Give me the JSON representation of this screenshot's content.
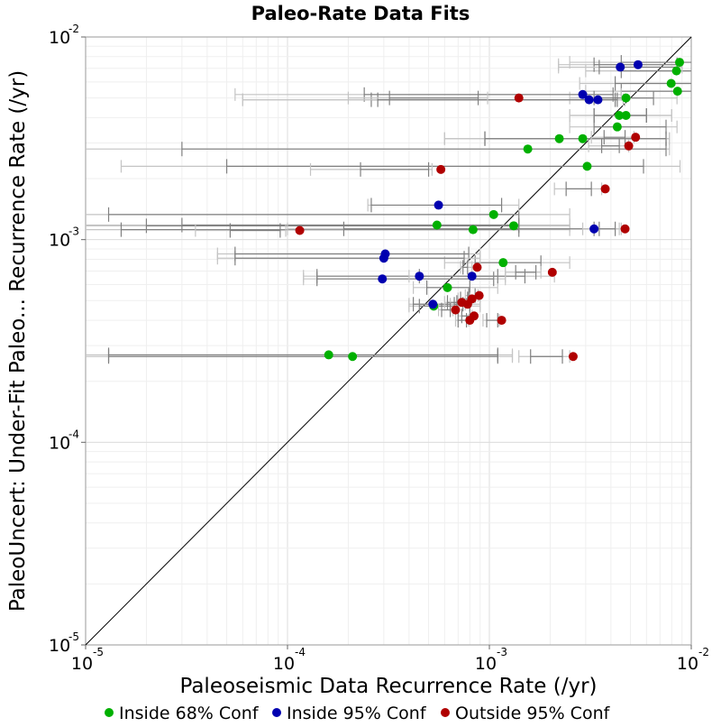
{
  "chart_data": {
    "type": "scatter",
    "title": "Paleo-Rate Data Fits",
    "xlabel": "Paleoseismic Data Recurrence Rate (/yr)",
    "ylabel": "PaleoUncert: Under-Fit Paleo... Recurrence Rate (/yr)",
    "xscale": "log",
    "yscale": "log",
    "xlim": [
      1e-05,
      0.01
    ],
    "ylim": [
      1e-05,
      0.01
    ],
    "x_ticks": [
      {
        "base": "10",
        "exp": "-5",
        "value": 1e-05
      },
      {
        "base": "10",
        "exp": "-4",
        "value": 0.0001
      },
      {
        "base": "10",
        "exp": "-3",
        "value": 0.001
      },
      {
        "base": "10",
        "exp": "-2",
        "value": 0.01
      }
    ],
    "y_ticks": [
      {
        "base": "10",
        "exp": "-5",
        "value": 1e-05
      },
      {
        "base": "10",
        "exp": "-4",
        "value": 0.0001
      },
      {
        "base": "10",
        "exp": "-3",
        "value": 0.001
      },
      {
        "base": "10",
        "exp": "-2",
        "value": 0.01
      }
    ],
    "grid": true,
    "reference_line": "y = x",
    "legend_position": "bottom",
    "legend": [
      {
        "label": "Inside 68% Conf",
        "color": "#00b000"
      },
      {
        "label": "Inside 95% Conf",
        "color": "#0000b0"
      },
      {
        "label": "Outside 95% Conf",
        "color": "#b00000"
      }
    ],
    "series": [
      {
        "name": "Inside 68% Conf",
        "color": "#00b000",
        "points": [
          {
            "x": 0.00875,
            "y": 0.0075,
            "ci68": [
              0.0045,
              0.01
            ],
            "ci95": [
              0.0025,
              0.012
            ]
          },
          {
            "x": 0.00845,
            "y": 0.0068,
            "ci68": [
              0.0045,
              0.01
            ],
            "ci95": [
              0.003,
              0.012
            ]
          },
          {
            "x": 0.00795,
            "y": 0.0059,
            "ci68": [
              0.0042,
              0.01
            ],
            "ci95": [
              0.0028,
              0.012
            ]
          },
          {
            "x": 0.00855,
            "y": 0.0054,
            "ci68": [
              0.0045,
              0.01
            ],
            "ci95": [
              0.003,
              0.012
            ]
          },
          {
            "x": 0.00475,
            "y": 0.005,
            "ci68": [
              0.0033,
              0.0065
            ],
            "ci95": [
              0.0025,
              0.0085
            ]
          },
          {
            "x": 0.00475,
            "y": 0.0041,
            "ci68": [
              0.0033,
              0.006
            ],
            "ci95": [
              0.0025,
              0.008
            ]
          },
          {
            "x": 0.0044,
            "y": 0.0041,
            "ci68": [
              0.0033,
              0.006
            ],
            "ci95": [
              0.0025,
              0.008
            ]
          },
          {
            "x": 0.0043,
            "y": 0.0036,
            "ci68": [
              0.0033,
              0.0075
            ],
            "ci95": [
              0.0025,
              0.0085
            ]
          },
          {
            "x": 0.00222,
            "y": 0.00315,
            "ci68": [
              0.00095,
              0.0075
            ],
            "ci95": [
              0.0006,
              0.0078
            ]
          },
          {
            "x": 0.0029,
            "y": 0.00315,
            "ci68": [
              0.00095,
              0.0075
            ],
            "ci95": [
              0.0006,
              0.0078
            ]
          },
          {
            "x": 0.00155,
            "y": 0.0028,
            "ci68": [
              3e-05,
              0.0075
            ],
            "ci95": [
              1e-05,
              0.0078
            ]
          },
          {
            "x": 0.00305,
            "y": 0.0023,
            "ci68": [
              5e-05,
              0.0058
            ],
            "ci95": [
              1.5e-05,
              0.0088
            ]
          },
          {
            "x": 0.00055,
            "y": 0.00118,
            "ci68": [
              3e-05,
              0.0014
            ],
            "ci95": [
              1e-05,
              0.0025
            ]
          },
          {
            "x": 0.00105,
            "y": 0.00133,
            "ci68": [
              1.3e-05,
              0.0014
            ],
            "ci95": [
              1e-05,
              0.0025
            ]
          },
          {
            "x": 0.00132,
            "y": 0.00117,
            "ci68": [
              2e-05,
              0.0014
            ],
            "ci95": [
              1e-05,
              0.0025
            ]
          },
          {
            "x": 0.00083,
            "y": 0.00112,
            "ci68": [
              1.5e-05,
              0.0014
            ],
            "ci95": [
              1e-05,
              0.0025
            ]
          },
          {
            "x": 0.00117,
            "y": 0.00077,
            "ci68": [
              0.00085,
              0.0018
            ],
            "ci95": [
              0.0006,
              0.0025
            ]
          },
          {
            "x": 0.00062,
            "y": 0.00058,
            "ci68": [
              0.00049,
              0.0008
            ],
            "ci95": [
              0.00042,
              0.0011
            ]
          },
          {
            "x": 0.00053,
            "y": 0.00047,
            "ci68": [
              0.00045,
              0.0007
            ],
            "ci95": [
              0.0004,
              0.0009
            ]
          },
          {
            "x": 0.00016,
            "y": 0.00027,
            "ci68": [
              1.3e-05,
              0.0011
            ],
            "ci95": [
              1e-05,
              0.0013
            ]
          },
          {
            "x": 0.00021,
            "y": 0.000265,
            "ci68": [
              1.3e-05,
              0.0011
            ],
            "ci95": [
              1e-05,
              0.0013
            ]
          }
        ]
      },
      {
        "name": "Inside 95% Conf",
        "color": "#0000b0",
        "points": [
          {
            "x": 0.00545,
            "y": 0.0073,
            "ci68": [
              0.0033,
              0.0085
            ],
            "ci95": [
              0.0022,
              0.009
            ]
          },
          {
            "x": 0.00445,
            "y": 0.0071,
            "ci68": [
              0.0035,
              0.0085
            ],
            "ci95": [
              0.0022,
              0.009
            ]
          },
          {
            "x": 0.0029,
            "y": 0.0052,
            "ci68": [
              0.00024,
              0.0041
            ],
            "ci95": [
              5.5e-05,
              0.0045
            ]
          },
          {
            "x": 0.00312,
            "y": 0.0049,
            "ci68": [
              0.00026,
              0.0042
            ],
            "ci95": [
              6e-05,
              0.0046
            ]
          },
          {
            "x": 0.00345,
            "y": 0.0049,
            "ci68": [
              0.00028,
              0.0043
            ],
            "ci95": [
              6e-05,
              0.0047
            ]
          },
          {
            "x": 0.00056,
            "y": 0.00148,
            "ci68": [
              0.00026,
              0.00115
            ],
            "ci95": [
              0.00025,
              0.0014
            ]
          },
          {
            "x": 0.0033,
            "y": 0.00113,
            "ci68": [
              0.00019,
              0.0035
            ],
            "ci95": [
              0.0001,
              0.0044
            ]
          },
          {
            "x": 0.000305,
            "y": 0.00085,
            "ci68": [
              5.5e-05,
              0.00079
            ],
            "ci95": [
              4.5e-05,
              0.0009
            ]
          },
          {
            "x": 0.0003,
            "y": 0.00081,
            "ci68": [
              5.5e-05,
              0.00075
            ],
            "ci95": [
              4.5e-05,
              0.0009
            ]
          },
          {
            "x": 0.000295,
            "y": 0.00064,
            "ci68": [
              0.00014,
              0.00105
            ],
            "ci95": [
              0.00012,
              0.0012
            ]
          },
          {
            "x": 0.00045,
            "y": 0.00066,
            "ci68": [
              0.00014,
              0.0011
            ],
            "ci95": [
              0.00012,
              0.0012
            ]
          },
          {
            "x": 0.00082,
            "y": 0.00066,
            "ci68": [
              0.00045,
              0.0015
            ],
            "ci95": [
              0.0004,
              0.0021
            ]
          },
          {
            "x": 0.000525,
            "y": 0.00048,
            "ci68": [
              0.00042,
              0.0008
            ],
            "ci95": [
              0.0004,
              0.0009
            ]
          }
        ]
      },
      {
        "name": "Outside 95% Conf",
        "color": "#b00000",
        "points": [
          {
            "x": 0.0014,
            "y": 0.005,
            "ci68": [
              0.00032,
              0.00088
            ],
            "ci95": [
              0.0002,
              0.00098
            ]
          },
          {
            "x": 0.0053,
            "y": 0.0032,
            "ci68": [
              0.0037,
              0.0047
            ],
            "ci95": [
              0.0032,
              0.0052
            ]
          },
          {
            "x": 0.0049,
            "y": 0.0029,
            "ci68": [
              0.0036,
              0.0044
            ],
            "ci95": [
              0.0031,
              0.0049
            ]
          },
          {
            "x": 0.000575,
            "y": 0.00222,
            "ci68": [
              0.00023,
              0.0005
            ],
            "ci95": [
              0.00013,
              0.00052
            ]
          },
          {
            "x": 0.00375,
            "y": 0.00178,
            "ci68": [
              0.0024,
              0.0032
            ],
            "ci95": [
              0.0021,
              0.0036
            ]
          },
          {
            "x": 0.000115,
            "y": 0.00111,
            "ci68": [
              5.2e-05,
              9.2e-05
            ],
            "ci95": [
              3.5e-05,
              9.8e-05
            ]
          },
          {
            "x": 0.0047,
            "y": 0.00113,
            "ci68": [
              0.0033,
              0.0042
            ],
            "ci95": [
              0.0029,
              0.0045
            ]
          },
          {
            "x": 0.00087,
            "y": 0.00073,
            "ci68": [
              0.00074,
              0.00078
            ],
            "ci95": [
              0.00072,
              0.00082
            ]
          },
          {
            "x": 0.00205,
            "y": 0.00069,
            "ci68": [
              0.00135,
              0.0017
            ],
            "ci95": [
              0.0012,
              0.0018
            ]
          },
          {
            "x": 0.00089,
            "y": 0.00053,
            "ci68": [
              0.00079,
              0.00085
            ],
            "ci95": [
              0.00076,
              0.00088
            ]
          },
          {
            "x": 0.00082,
            "y": 0.00051,
            "ci68": [
              0.00072,
              0.00078
            ],
            "ci95": [
              0.0007,
              0.0008
            ]
          },
          {
            "x": 0.00073,
            "y": 0.00049,
            "ci68": [
              0.00062,
              0.00069
            ],
            "ci95": [
              0.0006,
              0.0007
            ]
          },
          {
            "x": 0.00078,
            "y": 0.00048,
            "ci68": [
              0.00067,
              0.00074
            ],
            "ci95": [
              0.00064,
              0.00076
            ]
          },
          {
            "x": 0.00068,
            "y": 0.00045,
            "ci68": [
              0.00058,
              0.00064
            ],
            "ci95": [
              0.00056,
              0.00066
            ]
          },
          {
            "x": 0.00084,
            "y": 0.00042,
            "ci68": [
              0.00073,
              0.0008
            ],
            "ci95": [
              0.0007,
              0.00082
            ]
          },
          {
            "x": 0.0008,
            "y": 0.0004,
            "ci68": [
              0.0007,
              0.00077
            ],
            "ci95": [
              0.00068,
              0.00079
            ]
          },
          {
            "x": 0.00115,
            "y": 0.0004,
            "ci68": [
              0.00097,
              0.0011
            ],
            "ci95": [
              0.00093,
              0.00112
            ]
          },
          {
            "x": 0.0026,
            "y": 0.000265,
            "ci68": [
              0.0016,
              0.0023
            ],
            "ci95": [
              0.0014,
              0.0025
            ]
          }
        ]
      }
    ]
  }
}
